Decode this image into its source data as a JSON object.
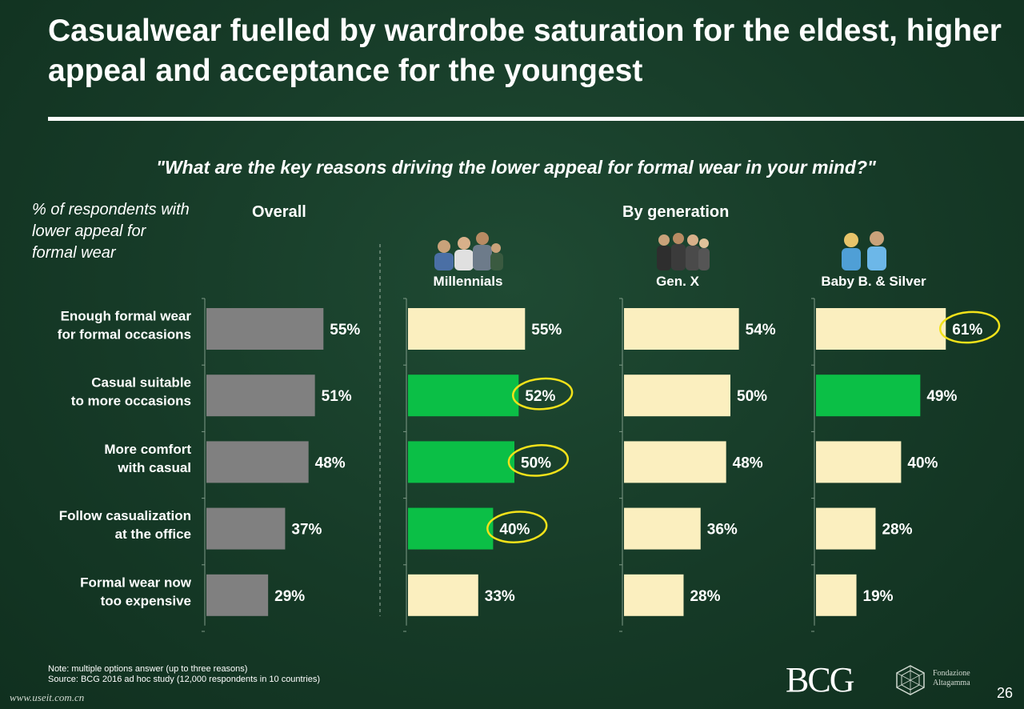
{
  "title": "Casualwear fuelled by wardrobe saturation for the eldest, higher appeal and acceptance for the youngest",
  "question": "\"What are the key reasons driving the lower appeal for formal wear in your mind?\"",
  "y_label": "% of respondents with lower appeal for formal wear",
  "sections": {
    "overall": "Overall",
    "by_generation": "By generation"
  },
  "groups": [
    "Millennials",
    "Gen. X",
    "Baby B. & Silver"
  ],
  "footnote": {
    "note": "Note: multiple options answer (up to three reasons)",
    "source": "Source: BCG 2016 ad hoc study (12,000 respondents in 10 countries)"
  },
  "logo": {
    "bcg": "BCG",
    "fondazione_line1": "Fondazione",
    "fondazione_line2": "Altagamma"
  },
  "page_number": "26",
  "watermark": "www.useit.com.cn",
  "colors": {
    "overall": "#808080",
    "base": "#fbefbf",
    "highlight": "#0bbf46",
    "circle": "#f2e21a"
  },
  "chart_data": {
    "type": "bar",
    "orientation": "horizontal",
    "categories": [
      [
        "Enough formal wear",
        "for formal occasions"
      ],
      [
        "Casual suitable",
        "to more occasions"
      ],
      [
        "More comfort",
        "with casual"
      ],
      [
        "Follow casualization",
        "at the office"
      ],
      [
        "Formal wear now",
        "too expensive"
      ]
    ],
    "series": [
      {
        "name": "Overall",
        "values": [
          55,
          51,
          48,
          37,
          29
        ],
        "highlight": [
          false,
          false,
          false,
          false,
          false
        ],
        "circled": [
          false,
          false,
          false,
          false,
          false
        ]
      },
      {
        "name": "Millennials",
        "values": [
          55,
          52,
          50,
          40,
          33
        ],
        "highlight": [
          false,
          true,
          true,
          true,
          false
        ],
        "circled": [
          false,
          true,
          true,
          true,
          false
        ]
      },
      {
        "name": "Gen. X",
        "values": [
          54,
          50,
          48,
          36,
          28
        ],
        "highlight": [
          false,
          false,
          false,
          false,
          false
        ],
        "circled": [
          false,
          false,
          false,
          false,
          false
        ]
      },
      {
        "name": "Baby B. & Silver",
        "values": [
          61,
          49,
          40,
          28,
          19
        ],
        "highlight": [
          false,
          true,
          false,
          false,
          false
        ],
        "circled": [
          true,
          false,
          false,
          false,
          false
        ]
      }
    ],
    "value_suffix": "%"
  }
}
